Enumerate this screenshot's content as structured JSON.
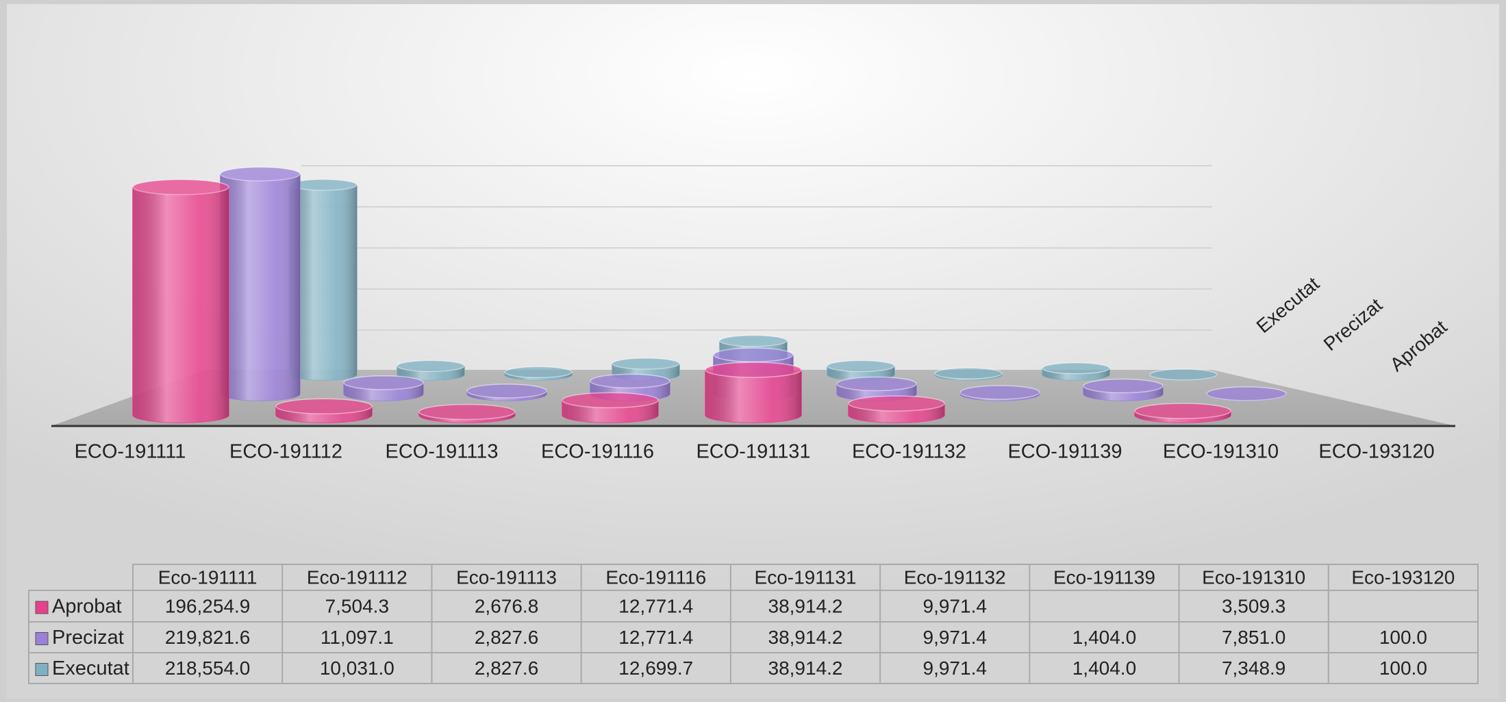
{
  "chart_data": {
    "type": "bar",
    "categories": [
      "ECO-191111",
      "ECO-191112",
      "ECO-191113",
      "ECO-191116",
      "ECO-191131",
      "ECO-191132",
      "ECO-191139",
      "ECO-191310",
      "ECO-193120"
    ],
    "table_columns": [
      "Eco-191111",
      "Eco-191112",
      "Eco-191113",
      "Eco-191116",
      "Eco-191131",
      "Eco-191132",
      "Eco-191139",
      "Eco-191310",
      "Eco-193120"
    ],
    "series": [
      {
        "name": "Aprobat",
        "color": "#e8418c",
        "values": [
          196254.9,
          7504.3,
          2676.8,
          12771.4,
          38914.2,
          9971.4,
          null,
          3509.3,
          null
        ],
        "value_labels": [
          "196,254.9",
          "7,504.3",
          "2,676.8",
          "12,771.4",
          "38,914.2",
          "9,971.4",
          null,
          "3,509.3",
          null
        ]
      },
      {
        "name": "Precizat",
        "color": "#9a80d8",
        "values": [
          219821.6,
          11097.1,
          2827.6,
          12771.4,
          38914.2,
          9971.4,
          1404.0,
          7851.0,
          100.0
        ],
        "value_labels": [
          "219,821.6",
          "11,097.1",
          "2,827.6",
          "12,771.4",
          "38,914.2",
          "9,971.4",
          "1,404.0",
          "7,851.0",
          "100.0"
        ]
      },
      {
        "name": "Executat",
        "color": "#7fb0c2",
        "values": [
          218554.0,
          10031.0,
          2827.6,
          12699.7,
          38914.2,
          9971.4,
          1404.0,
          7348.9,
          100.0
        ],
        "value_labels": [
          "218,554.0",
          "10,031.0",
          "2,827.6",
          "12,699.7",
          "38,914.2",
          "9,971.4",
          "1,404.0",
          "7,348.9",
          "100.0"
        ]
      }
    ],
    "ylim": [
      0,
      250000
    ],
    "yticks": [
      0,
      50000,
      100000,
      150000,
      200000,
      250000
    ],
    "grid": true
  }
}
